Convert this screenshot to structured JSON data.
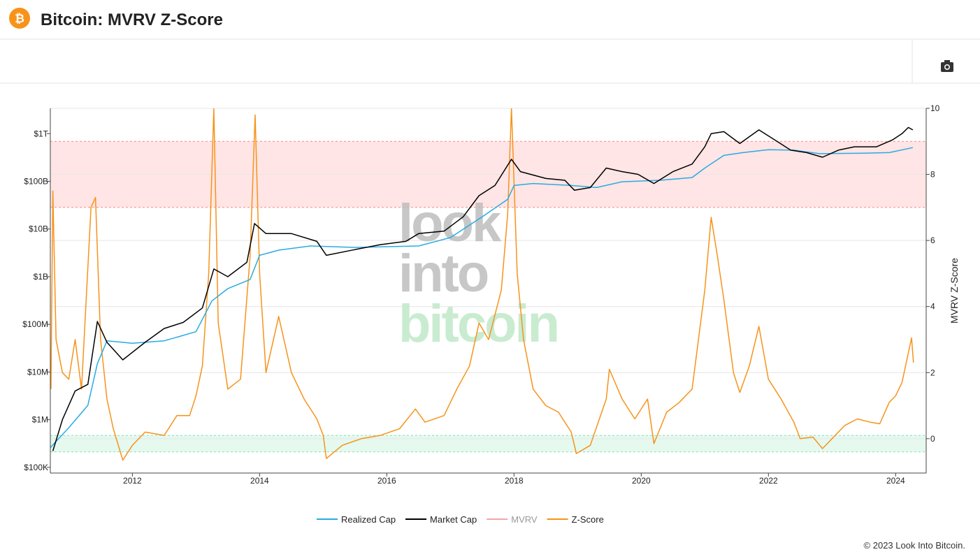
{
  "chart_data": {
    "type": "line",
    "title": "Bitcoin: MVRV Z-Score",
    "y2_label": "MVRV Z-Score",
    "footer": "© 2023 Look Into Bitcoin.",
    "watermark": [
      "look",
      "into",
      "bitcoin"
    ],
    "ylog": true,
    "xlim": [
      2010.71,
      2024.48
    ],
    "xticks": [
      2012,
      2014,
      2016,
      2018,
      2020,
      2022,
      2024
    ],
    "ylim": [
      76000,
      3400000000000
    ],
    "yticks": [
      {
        "value": 100000,
        "label": "$100K"
      },
      {
        "value": 1000000,
        "label": "$1M"
      },
      {
        "value": 10000000,
        "label": "$10M"
      },
      {
        "value": 100000000,
        "label": "$100M"
      },
      {
        "value": 1000000000,
        "label": "$1B"
      },
      {
        "value": 10000000000,
        "label": "$10B"
      },
      {
        "value": 100000000000,
        "label": "$100B"
      },
      {
        "value": 1000000000000,
        "label": "$1T"
      }
    ],
    "y2lim": [
      -1.04,
      10
    ],
    "y2ticks": [
      0,
      2,
      4,
      6,
      8,
      10
    ],
    "grid": true,
    "bands": [
      {
        "from": 7,
        "to": 9,
        "color": "#ff0000"
      },
      {
        "from": -0.4,
        "to": 0.1,
        "color": "#00c060"
      }
    ],
    "series": [
      {
        "name": "Realized Cap",
        "color": "#29abe2",
        "axis": "y",
        "x": [
          2010.71,
          2011.0,
          2011.3,
          2011.45,
          2011.6,
          2012.0,
          2012.5,
          2013.0,
          2013.25,
          2013.5,
          2013.85,
          2014.0,
          2014.3,
          2014.8,
          2015.5,
          2016.5,
          2017.0,
          2017.5,
          2017.9,
          2018.0,
          2018.3,
          2018.9,
          2019.3,
          2019.7,
          2020.3,
          2020.8,
          2021.0,
          2021.3,
          2021.6,
          2022.0,
          2022.4,
          2022.8,
          2023.5,
          2023.9,
          2024.27
        ],
        "values": [
          260000,
          680000,
          2000000,
          15000000,
          45000000,
          40000000,
          45000000,
          70000000,
          310000000,
          560000000,
          870000000,
          2800000000,
          3600000000,
          4400000000,
          4100000000,
          4400000000,
          6600000000,
          18000000000,
          42000000000,
          82000000000,
          90000000000,
          82000000000,
          74000000000,
          98000000000,
          105000000000,
          120000000000,
          190000000000,
          350000000000,
          400000000000,
          460000000000,
          450000000000,
          380000000000,
          390000000000,
          400000000000,
          510000000000
        ]
      },
      {
        "name": "Market Cap",
        "color": "#000000",
        "axis": "y",
        "x": [
          2010.75,
          2010.9,
          2011.1,
          2011.3,
          2011.45,
          2011.6,
          2011.85,
          2012.2,
          2012.5,
          2012.8,
          2013.1,
          2013.28,
          2013.5,
          2013.8,
          2013.92,
          2014.1,
          2014.5,
          2014.9,
          2015.05,
          2015.5,
          2015.9,
          2016.3,
          2016.5,
          2016.9,
          2017.2,
          2017.45,
          2017.7,
          2017.96,
          2018.1,
          2018.5,
          2018.8,
          2018.95,
          2019.2,
          2019.45,
          2019.7,
          2019.95,
          2020.2,
          2020.5,
          2020.8,
          2021.0,
          2021.1,
          2021.3,
          2021.55,
          2021.85,
          2022.1,
          2022.35,
          2022.6,
          2022.85,
          2023.1,
          2023.35,
          2023.7,
          2023.95,
          2024.1,
          2024.2,
          2024.27
        ],
        "values": [
          220000,
          1000000,
          4000000,
          5500000,
          115000000,
          42000000,
          18000000,
          42000000,
          82000000,
          110000000,
          220000000,
          1450000000,
          1000000000,
          2000000000,
          13000000000,
          8000000000,
          8000000000,
          5500000000,
          2800000000,
          3700000000,
          4700000000,
          5500000000,
          8000000000,
          9000000000,
          18000000000,
          50000000000,
          82000000000,
          290000000000,
          160000000000,
          115000000000,
          105000000000,
          65000000000,
          74000000000,
          190000000000,
          160000000000,
          140000000000,
          90000000000,
          160000000000,
          230000000000,
          530000000000,
          1000000000000,
          1100000000000,
          620000000000,
          1200000000000,
          740000000000,
          450000000000,
          400000000000,
          320000000000,
          450000000000,
          530000000000,
          530000000000,
          740000000000,
          1000000000000,
          1350000000000,
          1200000000000
        ]
      },
      {
        "name": "MVRV",
        "color": "#f4a6a6",
        "axis": "y2",
        "visible": false
      },
      {
        "name": "Z-Score",
        "color": "#f7931a",
        "axis": "y2",
        "x": [
          2010.72,
          2010.75,
          2010.8,
          2010.9,
          2011.0,
          2011.1,
          2011.2,
          2011.35,
          2011.42,
          2011.5,
          2011.6,
          2011.7,
          2011.85,
          2012.0,
          2012.2,
          2012.5,
          2012.7,
          2012.9,
          2013.0,
          2013.1,
          2013.2,
          2013.28,
          2013.35,
          2013.5,
          2013.7,
          2013.85,
          2013.93,
          2014.0,
          2014.1,
          2014.3,
          2014.5,
          2014.7,
          2014.9,
          2015.0,
          2015.05,
          2015.3,
          2015.6,
          2015.9,
          2016.2,
          2016.45,
          2016.6,
          2016.9,
          2017.1,
          2017.3,
          2017.45,
          2017.6,
          2017.8,
          2017.9,
          2017.96,
          2018.05,
          2018.15,
          2018.3,
          2018.5,
          2018.7,
          2018.9,
          2018.98,
          2019.2,
          2019.45,
          2019.5,
          2019.7,
          2019.9,
          2020.1,
          2020.2,
          2020.4,
          2020.6,
          2020.8,
          2020.9,
          2021.0,
          2021.1,
          2021.2,
          2021.3,
          2021.45,
          2021.55,
          2021.7,
          2021.85,
          2022.0,
          2022.2,
          2022.4,
          2022.5,
          2022.7,
          2022.85,
          2023.0,
          2023.2,
          2023.4,
          2023.6,
          2023.75,
          2023.9,
          2024.0,
          2024.1,
          2024.2,
          2024.25,
          2024.28
        ],
        "values": [
          1.5,
          7.5,
          3.0,
          2.0,
          1.8,
          3.0,
          1.5,
          7.0,
          7.3,
          3.0,
          1.2,
          0.3,
          -0.65,
          -0.2,
          0.2,
          0.1,
          0.7,
          0.7,
          1.3,
          2.2,
          5.0,
          10.0,
          3.5,
          1.5,
          1.8,
          5.5,
          9.8,
          5.0,
          2.0,
          3.7,
          2.0,
          1.2,
          0.6,
          0.1,
          -0.6,
          -0.2,
          0,
          0.1,
          0.3,
          0.9,
          0.5,
          0.7,
          1.5,
          2.2,
          3.5,
          3.0,
          4.5,
          6.8,
          10.0,
          5.0,
          3.0,
          1.5,
          1.0,
          0.8,
          0.2,
          -0.45,
          -0.2,
          1.2,
          2.1,
          1.2,
          0.6,
          1.2,
          -0.15,
          0.8,
          1.1,
          1.5,
          3.0,
          4.5,
          6.7,
          5.5,
          4.2,
          2.0,
          1.4,
          2.2,
          3.4,
          1.8,
          1.2,
          0.5,
          0.0,
          0.05,
          -0.3,
          0,
          0.4,
          0.6,
          0.5,
          0.45,
          1.1,
          1.3,
          1.7,
          2.6,
          3.05,
          2.3
        ]
      }
    ]
  }
}
